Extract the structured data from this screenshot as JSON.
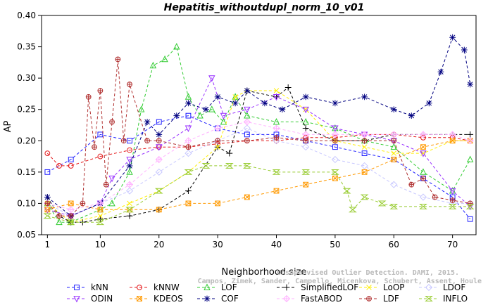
{
  "chart_data": {
    "type": "line",
    "title": "Hepatitis_withoutdupl_norm_10_v01",
    "xlabel": "Neighborhood size",
    "ylabel": "AP",
    "xlim": [
      0,
      74
    ],
    "ylim": [
      0.05,
      0.4
    ],
    "xticks": [
      1,
      10,
      20,
      30,
      40,
      50,
      60,
      70
    ],
    "yticks": [
      0.05,
      0.1,
      0.15,
      0.2,
      0.25,
      0.3,
      0.35,
      0.4
    ],
    "grid": false,
    "legend_position": "bottom",
    "series": [
      {
        "name": "kNN",
        "color": "#1f1fff",
        "marker": "square",
        "x": [
          1,
          5,
          10,
          15,
          20,
          25,
          30,
          35,
          40,
          45,
          50,
          55,
          60,
          65,
          70,
          73
        ],
        "values": [
          0.15,
          0.17,
          0.21,
          0.2,
          0.23,
          0.24,
          0.22,
          0.21,
          0.21,
          0.2,
          0.19,
          0.18,
          0.17,
          0.14,
          0.11,
          0.075
        ]
      },
      {
        "name": "kNNW",
        "color": "#e41a1c",
        "marker": "circle",
        "x": [
          1,
          3,
          5,
          10,
          15,
          20,
          25,
          30,
          35,
          40,
          45,
          50,
          55,
          60,
          65,
          70,
          73
        ],
        "values": [
          0.18,
          0.16,
          0.16,
          0.175,
          0.185,
          0.19,
          0.19,
          0.195,
          0.2,
          0.2,
          0.205,
          0.205,
          0.21,
          0.21,
          0.205,
          0.205,
          0.2
        ]
      },
      {
        "name": "LOF",
        "color": "#33cc33",
        "marker": "triangle",
        "x": [
          1,
          3,
          5,
          10,
          12,
          15,
          17,
          19,
          21,
          23,
          25,
          27,
          29,
          31,
          33,
          35,
          40,
          45,
          50,
          55,
          60,
          65,
          70,
          73
        ],
        "values": [
          0.1,
          0.07,
          0.07,
          0.09,
          0.1,
          0.15,
          0.25,
          0.32,
          0.33,
          0.35,
          0.27,
          0.24,
          0.25,
          0.23,
          0.27,
          0.24,
          0.23,
          0.23,
          0.22,
          0.2,
          0.19,
          0.15,
          0.12,
          0.17
        ]
      },
      {
        "name": "SimplifiedLOF",
        "color": "#000000",
        "marker": "plus",
        "x": [
          1,
          3,
          5,
          7,
          10,
          15,
          20,
          25,
          30,
          32,
          35,
          40,
          42,
          45,
          50,
          55,
          60,
          65,
          70,
          73
        ],
        "values": [
          0.11,
          0.08,
          0.07,
          0.07,
          0.075,
          0.08,
          0.09,
          0.12,
          0.19,
          0.18,
          0.28,
          0.27,
          0.285,
          0.22,
          0.2,
          0.2,
          0.21,
          0.21,
          0.21,
          0.21
        ]
      },
      {
        "name": "LoOP",
        "color": "#ffee00",
        "marker": "x",
        "x": [
          1,
          5,
          10,
          15,
          20,
          25,
          30,
          33,
          35,
          40,
          45,
          50,
          55,
          60,
          65,
          70,
          73
        ],
        "values": [
          0.1,
          0.07,
          0.08,
          0.1,
          0.12,
          0.15,
          0.19,
          0.27,
          0.28,
          0.28,
          0.25,
          0.2,
          0.19,
          0.18,
          0.18,
          0.2,
          0.2
        ]
      },
      {
        "name": "LDOF",
        "color": "#c8c8ff",
        "marker": "diamond",
        "x": [
          1,
          5,
          10,
          15,
          20,
          25,
          30,
          35,
          40,
          45,
          50,
          55,
          60,
          65,
          70,
          73
        ],
        "values": [
          0.1,
          0.08,
          0.1,
          0.12,
          0.15,
          0.18,
          0.2,
          0.22,
          0.2,
          0.19,
          0.17,
          0.16,
          0.13,
          0.11,
          0.1,
          0.1
        ]
      },
      {
        "name": "ODIN",
        "color": "#9933ff",
        "marker": "invtriangle",
        "x": [
          1,
          5,
          10,
          12,
          15,
          20,
          25,
          29,
          31,
          35,
          40,
          45,
          50,
          55,
          60,
          65,
          70,
          73
        ],
        "values": [
          0.09,
          0.08,
          0.1,
          0.14,
          0.17,
          0.19,
          0.22,
          0.3,
          0.24,
          0.25,
          0.27,
          0.25,
          0.22,
          0.21,
          0.2,
          0.18,
          0.12,
          0.095
        ]
      },
      {
        "name": "KDEOS",
        "color": "#ff9900",
        "marker": "xbox",
        "x": [
          1,
          5,
          10,
          15,
          20,
          25,
          30,
          35,
          40,
          45,
          50,
          55,
          60,
          65,
          70,
          73
        ],
        "values": [
          0.09,
          0.1,
          0.09,
          0.09,
          0.09,
          0.1,
          0.1,
          0.11,
          0.12,
          0.13,
          0.14,
          0.15,
          0.17,
          0.19,
          0.2,
          0.2
        ]
      },
      {
        "name": "COF",
        "color": "#000080",
        "marker": "star",
        "x": [
          1,
          5,
          10,
          15,
          18,
          20,
          23,
          25,
          28,
          30,
          33,
          35,
          38,
          41,
          45,
          50,
          55,
          60,
          63,
          66,
          68,
          70,
          72,
          73
        ],
        "values": [
          0.11,
          0.08,
          0.1,
          0.16,
          0.23,
          0.21,
          0.24,
          0.26,
          0.25,
          0.27,
          0.26,
          0.28,
          0.26,
          0.25,
          0.27,
          0.26,
          0.27,
          0.25,
          0.24,
          0.26,
          0.31,
          0.365,
          0.345,
          0.29
        ]
      },
      {
        "name": "FastABOD",
        "color": "#ffb3ff",
        "marker": "diamondplus",
        "x": [
          1,
          5,
          10,
          15,
          20,
          25,
          30,
          35,
          40,
          45,
          50,
          55,
          60,
          65,
          70,
          73
        ],
        "values": [
          0.1,
          0.09,
          0.1,
          0.13,
          0.17,
          0.2,
          0.22,
          0.23,
          0.22,
          0.21,
          0.21,
          0.21,
          0.21,
          0.21,
          0.21,
          0.2
        ]
      },
      {
        "name": "LDF",
        "color": "#b03030",
        "marker": "circleplus",
        "x": [
          1,
          3,
          5,
          7,
          8,
          9,
          10,
          11,
          12,
          13,
          14,
          15,
          18,
          20,
          25,
          30,
          35,
          40,
          45,
          50,
          55,
          60,
          63,
          65,
          67,
          70,
          73
        ],
        "values": [
          0.1,
          0.08,
          0.08,
          0.1,
          0.27,
          0.19,
          0.28,
          0.13,
          0.23,
          0.33,
          0.2,
          0.29,
          0.2,
          0.2,
          0.19,
          0.2,
          0.2,
          0.205,
          0.2,
          0.2,
          0.2,
          0.2,
          0.13,
          0.14,
          0.11,
          0.105,
          0.1
        ]
      },
      {
        "name": "INFLO",
        "color": "#99cc33",
        "marker": "hourglass",
        "x": [
          1,
          5,
          10,
          15,
          20,
          25,
          28,
          32,
          35,
          40,
          45,
          50,
          52,
          53,
          55,
          58,
          60,
          65,
          70,
          73
        ],
        "values": [
          0.08,
          0.07,
          0.07,
          0.09,
          0.12,
          0.15,
          0.16,
          0.16,
          0.16,
          0.15,
          0.15,
          0.15,
          0.12,
          0.09,
          0.11,
          0.1,
          0.095,
          0.095,
          0.095,
          0.095
        ]
      }
    ]
  },
  "watermark": {
    "line1": "Unsupervised Outlier Detection. DAMI, 2015.",
    "line2": "Campos, Zimek, Sander, Campello, Micenkova, Schubert, Assent, Houle"
  }
}
